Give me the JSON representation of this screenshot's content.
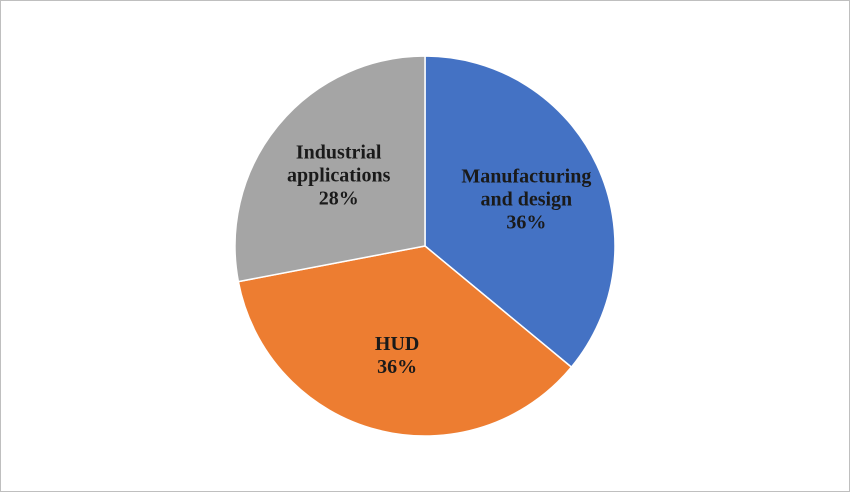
{
  "chart_data": {
    "type": "pie",
    "slices": [
      {
        "name": "Manufacturing and design",
        "label_lines": [
          "Manufacturing",
          "and design"
        ],
        "percent_label": "36%",
        "value": 36,
        "color": "#4472C4"
      },
      {
        "name": "HUD",
        "label_lines": [
          "HUD"
        ],
        "percent_label": "36%",
        "value": 36,
        "color": "#ED7D31"
      },
      {
        "name": "Industrial applications",
        "label_lines": [
          "Industrial",
          "applications"
        ],
        "percent_label": "28%",
        "value": 28,
        "color": "#A5A5A5"
      }
    ],
    "start_angle_deg": 0,
    "direction": "clockwise",
    "legend": "none"
  }
}
